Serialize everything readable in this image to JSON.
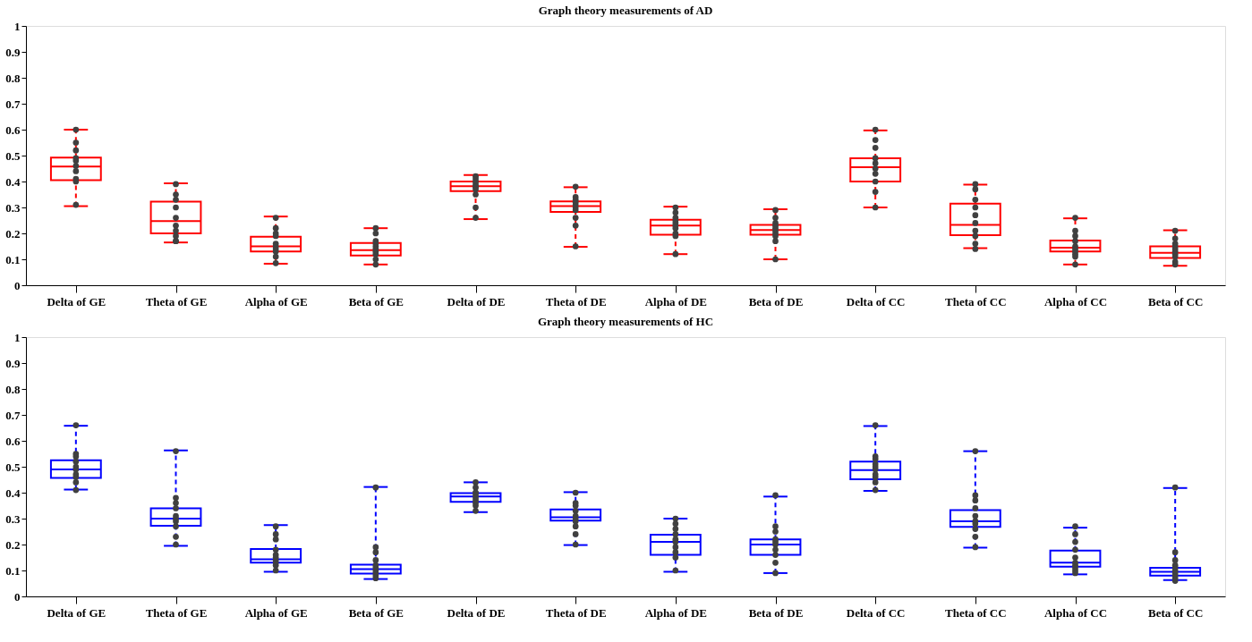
{
  "chart_data": [
    {
      "type": "box",
      "title": "Graph theory measurements of AD",
      "color": "#ff0000",
      "grid": false,
      "legend": false,
      "categories": [
        "Delta of GE",
        "Theta of GE",
        "Alpha of GE",
        "Beta of GE",
        "Delta of DE",
        "Theta of DE",
        "Alpha of DE",
        "Beta of DE",
        "Delta of CC",
        "Theta of CC",
        "Alpha of CC",
        "Beta of CC"
      ],
      "ylim": [
        0,
        1
      ],
      "yticks": [
        0,
        0.1,
        0.2,
        0.3,
        0.4,
        0.5,
        0.6,
        0.7,
        0.8,
        0.9,
        1
      ],
      "boxes": [
        {
          "low": 0.305,
          "q1": 0.405,
          "median": 0.458,
          "q3": 0.492,
          "high": 0.6
        },
        {
          "low": 0.165,
          "q1": 0.2,
          "median": 0.247,
          "q3": 0.322,
          "high": 0.393
        },
        {
          "low": 0.083,
          "q1": 0.13,
          "median": 0.15,
          "q3": 0.187,
          "high": 0.265
        },
        {
          "low": 0.08,
          "q1": 0.115,
          "median": 0.135,
          "q3": 0.163,
          "high": 0.22
        },
        {
          "low": 0.255,
          "q1": 0.363,
          "median": 0.382,
          "q3": 0.4,
          "high": 0.425
        },
        {
          "low": 0.148,
          "q1": 0.283,
          "median": 0.305,
          "q3": 0.323,
          "high": 0.378
        },
        {
          "low": 0.12,
          "q1": 0.195,
          "median": 0.23,
          "q3": 0.253,
          "high": 0.303
        },
        {
          "low": 0.1,
          "q1": 0.195,
          "median": 0.213,
          "q3": 0.233,
          "high": 0.293
        },
        {
          "low": 0.3,
          "q1": 0.4,
          "median": 0.455,
          "q3": 0.49,
          "high": 0.597
        },
        {
          "low": 0.143,
          "q1": 0.193,
          "median": 0.233,
          "q3": 0.315,
          "high": 0.388
        },
        {
          "low": 0.08,
          "q1": 0.13,
          "median": 0.145,
          "q3": 0.172,
          "high": 0.258
        },
        {
          "low": 0.075,
          "q1": 0.105,
          "median": 0.125,
          "q3": 0.15,
          "high": 0.212
        }
      ],
      "series": [
        {
          "type": "scatter",
          "color": "#404040",
          "marker": "circle",
          "x": [
            "Delta of GE",
            "Delta of GE",
            "Delta of GE",
            "Delta of GE",
            "Delta of GE",
            "Delta of GE",
            "Delta of GE",
            "Delta of GE",
            "Delta of GE",
            "Delta of GE",
            "Theta of GE",
            "Theta of GE",
            "Theta of GE",
            "Theta of GE",
            "Theta of GE",
            "Theta of GE",
            "Theta of GE",
            "Theta of GE",
            "Theta of GE",
            "Theta of GE",
            "Alpha of GE",
            "Alpha of GE",
            "Alpha of GE",
            "Alpha of GE",
            "Alpha of GE",
            "Alpha of GE",
            "Alpha of GE",
            "Alpha of GE",
            "Alpha of GE",
            "Alpha of GE",
            "Beta of GE",
            "Beta of GE",
            "Beta of GE",
            "Beta of GE",
            "Beta of GE",
            "Beta of GE",
            "Beta of GE",
            "Beta of GE",
            "Beta of GE",
            "Beta of GE",
            "Delta of DE",
            "Delta of DE",
            "Delta of DE",
            "Delta of DE",
            "Delta of DE",
            "Delta of DE",
            "Delta of DE",
            "Delta of DE",
            "Delta of DE",
            "Delta of DE",
            "Theta of DE",
            "Theta of DE",
            "Theta of DE",
            "Theta of DE",
            "Theta of DE",
            "Theta of DE",
            "Theta of DE",
            "Theta of DE",
            "Theta of DE",
            "Theta of DE",
            "Alpha of DE",
            "Alpha of DE",
            "Alpha of DE",
            "Alpha of DE",
            "Alpha of DE",
            "Alpha of DE",
            "Alpha of DE",
            "Alpha of DE",
            "Alpha of DE",
            "Alpha of DE",
            "Beta of DE",
            "Beta of DE",
            "Beta of DE",
            "Beta of DE",
            "Beta of DE",
            "Beta of DE",
            "Beta of DE",
            "Beta of DE",
            "Beta of DE",
            "Beta of DE",
            "Delta of CC",
            "Delta of CC",
            "Delta of CC",
            "Delta of CC",
            "Delta of CC",
            "Delta of CC",
            "Delta of CC",
            "Delta of CC",
            "Delta of CC",
            "Delta of CC",
            "Theta of CC",
            "Theta of CC",
            "Theta of CC",
            "Theta of CC",
            "Theta of CC",
            "Theta of CC",
            "Theta of CC",
            "Theta of CC",
            "Theta of CC",
            "Theta of CC",
            "Alpha of CC",
            "Alpha of CC",
            "Alpha of CC",
            "Alpha of CC",
            "Alpha of CC",
            "Alpha of CC",
            "Alpha of CC",
            "Alpha of CC",
            "Alpha of CC",
            "Alpha of CC",
            "Beta of CC",
            "Beta of CC",
            "Beta of CC",
            "Beta of CC",
            "Beta of CC",
            "Beta of CC",
            "Beta of CC",
            "Beta of CC",
            "Beta of CC",
            "Beta of CC"
          ],
          "values": [
            0.6,
            0.55,
            0.52,
            0.49,
            0.48,
            0.46,
            0.44,
            0.41,
            0.4,
            0.31,
            0.39,
            0.35,
            0.33,
            0.3,
            0.26,
            0.23,
            0.21,
            0.19,
            0.17,
            0.17,
            0.26,
            0.22,
            0.2,
            0.19,
            0.16,
            0.15,
            0.14,
            0.13,
            0.11,
            0.085,
            0.22,
            0.2,
            0.17,
            0.16,
            0.15,
            0.14,
            0.13,
            0.12,
            0.1,
            0.08,
            0.42,
            0.41,
            0.4,
            0.39,
            0.38,
            0.38,
            0.37,
            0.35,
            0.3,
            0.26,
            0.38,
            0.34,
            0.33,
            0.32,
            0.31,
            0.3,
            0.29,
            0.26,
            0.23,
            0.15,
            0.3,
            0.28,
            0.26,
            0.25,
            0.24,
            0.23,
            0.22,
            0.2,
            0.19,
            0.12,
            0.29,
            0.26,
            0.24,
            0.23,
            0.22,
            0.21,
            0.2,
            0.19,
            0.17,
            0.1,
            0.6,
            0.56,
            0.53,
            0.49,
            0.47,
            0.45,
            0.43,
            0.4,
            0.36,
            0.3,
            0.39,
            0.37,
            0.33,
            0.3,
            0.27,
            0.24,
            0.21,
            0.19,
            0.16,
            0.14,
            0.26,
            0.21,
            0.19,
            0.17,
            0.15,
            0.14,
            0.13,
            0.12,
            0.11,
            0.08,
            0.21,
            0.18,
            0.16,
            0.15,
            0.14,
            0.13,
            0.12,
            0.11,
            0.09,
            0.08
          ]
        }
      ]
    },
    {
      "type": "box",
      "title": "Graph theory measurements of HC",
      "color": "#0000ff",
      "grid": false,
      "legend": false,
      "categories": [
        "Delta of GE",
        "Theta of GE",
        "Alpha of GE",
        "Beta of GE",
        "Delta of DE",
        "Theta of DE",
        "Alpha of DE",
        "Beta of DE",
        "Delta of CC",
        "Theta of CC",
        "Alpha of CC",
        "Beta of CC"
      ],
      "ylim": [
        0,
        1
      ],
      "yticks": [
        0,
        0.1,
        0.2,
        0.3,
        0.4,
        0.5,
        0.6,
        0.7,
        0.8,
        0.9,
        1
      ],
      "boxes": [
        {
          "low": 0.412,
          "q1": 0.457,
          "median": 0.49,
          "q3": 0.525,
          "high": 0.658
        },
        {
          "low": 0.195,
          "q1": 0.272,
          "median": 0.3,
          "q3": 0.34,
          "high": 0.563
        },
        {
          "low": 0.095,
          "q1": 0.13,
          "median": 0.143,
          "q3": 0.183,
          "high": 0.275
        },
        {
          "low": 0.067,
          "q1": 0.088,
          "median": 0.105,
          "q3": 0.122,
          "high": 0.422
        },
        {
          "low": 0.325,
          "q1": 0.365,
          "median": 0.385,
          "q3": 0.398,
          "high": 0.44
        },
        {
          "low": 0.198,
          "q1": 0.292,
          "median": 0.305,
          "q3": 0.335,
          "high": 0.402
        },
        {
          "low": 0.095,
          "q1": 0.16,
          "median": 0.21,
          "q3": 0.238,
          "high": 0.3
        },
        {
          "low": 0.09,
          "q1": 0.16,
          "median": 0.2,
          "q3": 0.22,
          "high": 0.385
        },
        {
          "low": 0.407,
          "q1": 0.452,
          "median": 0.487,
          "q3": 0.52,
          "high": 0.657
        },
        {
          "low": 0.188,
          "q1": 0.268,
          "median": 0.29,
          "q3": 0.333,
          "high": 0.56
        },
        {
          "low": 0.085,
          "q1": 0.115,
          "median": 0.13,
          "q3": 0.177,
          "high": 0.265
        },
        {
          "low": 0.063,
          "q1": 0.08,
          "median": 0.095,
          "q3": 0.11,
          "high": 0.418
        }
      ],
      "series": [
        {
          "type": "scatter",
          "color": "#404040",
          "marker": "circle",
          "x": [
            "Delta of GE",
            "Delta of GE",
            "Delta of GE",
            "Delta of GE",
            "Delta of GE",
            "Delta of GE",
            "Delta of GE",
            "Delta of GE",
            "Delta of GE",
            "Delta of GE",
            "Theta of GE",
            "Theta of GE",
            "Theta of GE",
            "Theta of GE",
            "Theta of GE",
            "Theta of GE",
            "Theta of GE",
            "Theta of GE",
            "Theta of GE",
            "Theta of GE",
            "Alpha of GE",
            "Alpha of GE",
            "Alpha of GE",
            "Alpha of GE",
            "Alpha of GE",
            "Alpha of GE",
            "Alpha of GE",
            "Alpha of GE",
            "Alpha of GE",
            "Alpha of GE",
            "Beta of GE",
            "Beta of GE",
            "Beta of GE",
            "Beta of GE",
            "Beta of GE",
            "Beta of GE",
            "Beta of GE",
            "Beta of GE",
            "Beta of GE",
            "Beta of GE",
            "Delta of DE",
            "Delta of DE",
            "Delta of DE",
            "Delta of DE",
            "Delta of DE",
            "Delta of DE",
            "Delta of DE",
            "Delta of DE",
            "Delta of DE",
            "Delta of DE",
            "Theta of DE",
            "Theta of DE",
            "Theta of DE",
            "Theta of DE",
            "Theta of DE",
            "Theta of DE",
            "Theta of DE",
            "Theta of DE",
            "Theta of DE",
            "Theta of DE",
            "Alpha of DE",
            "Alpha of DE",
            "Alpha of DE",
            "Alpha of DE",
            "Alpha of DE",
            "Alpha of DE",
            "Alpha of DE",
            "Alpha of DE",
            "Alpha of DE",
            "Alpha of DE",
            "Beta of DE",
            "Beta of DE",
            "Beta of DE",
            "Beta of DE",
            "Beta of DE",
            "Beta of DE",
            "Beta of DE",
            "Beta of DE",
            "Beta of DE",
            "Beta of DE",
            "Delta of CC",
            "Delta of CC",
            "Delta of CC",
            "Delta of CC",
            "Delta of CC",
            "Delta of CC",
            "Delta of CC",
            "Delta of CC",
            "Delta of CC",
            "Delta of CC",
            "Theta of CC",
            "Theta of CC",
            "Theta of CC",
            "Theta of CC",
            "Theta of CC",
            "Theta of CC",
            "Theta of CC",
            "Theta of CC",
            "Theta of CC",
            "Theta of CC",
            "Alpha of CC",
            "Alpha of CC",
            "Alpha of CC",
            "Alpha of CC",
            "Alpha of CC",
            "Alpha of CC",
            "Alpha of CC",
            "Alpha of CC",
            "Alpha of CC",
            "Alpha of CC",
            "Beta of CC",
            "Beta of CC",
            "Beta of CC",
            "Beta of CC",
            "Beta of CC",
            "Beta of CC",
            "Beta of CC",
            "Beta of CC",
            "Beta of CC",
            "Beta of CC"
          ],
          "values": [
            0.66,
            0.55,
            0.54,
            0.52,
            0.5,
            0.49,
            0.47,
            0.46,
            0.44,
            0.41,
            0.56,
            0.38,
            0.36,
            0.34,
            0.31,
            0.3,
            0.29,
            0.27,
            0.23,
            0.2,
            0.27,
            0.24,
            0.22,
            0.18,
            0.16,
            0.15,
            0.14,
            0.13,
            0.12,
            0.1,
            0.42,
            0.19,
            0.17,
            0.14,
            0.12,
            0.11,
            0.1,
            0.09,
            0.08,
            0.07,
            0.44,
            0.42,
            0.4,
            0.4,
            0.39,
            0.38,
            0.37,
            0.36,
            0.35,
            0.33,
            0.4,
            0.36,
            0.35,
            0.33,
            0.31,
            0.3,
            0.29,
            0.27,
            0.24,
            0.2,
            0.3,
            0.28,
            0.26,
            0.24,
            0.22,
            0.21,
            0.19,
            0.17,
            0.15,
            0.1,
            0.39,
            0.27,
            0.25,
            0.22,
            0.21,
            0.2,
            0.18,
            0.16,
            0.13,
            0.09,
            0.66,
            0.54,
            0.53,
            0.51,
            0.5,
            0.49,
            0.47,
            0.46,
            0.44,
            0.41,
            0.56,
            0.39,
            0.37,
            0.34,
            0.31,
            0.29,
            0.28,
            0.26,
            0.23,
            0.19,
            0.27,
            0.24,
            0.21,
            0.18,
            0.15,
            0.13,
            0.12,
            0.11,
            0.1,
            0.09,
            0.42,
            0.17,
            0.14,
            0.12,
            0.11,
            0.1,
            0.09,
            0.08,
            0.07,
            0.06
          ]
        }
      ]
    }
  ]
}
